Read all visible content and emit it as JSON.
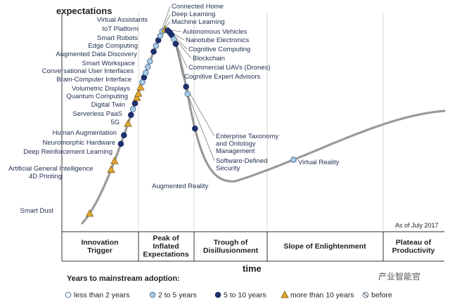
{
  "chart_data": {
    "type": "scatter",
    "ylabel": "expectations",
    "xlabel": "time",
    "as_of": "As of July 2017",
    "phases": [
      "Innovation\nTrigger",
      "Peak of\nInflated\nExpectations",
      "Trough of\nDisillusionment",
      "Slope of Enlightenment",
      "Plateau of\nProductivity"
    ],
    "legend": {
      "title": "Years to mainstream adoption:",
      "items": [
        {
          "key": "lt2",
          "label": "less than 2 years"
        },
        {
          "key": "2to5",
          "label": "2 to 5 years"
        },
        {
          "key": "5to10",
          "label": "5 to 10 years"
        },
        {
          "key": "gt10",
          "label": "more than 10 years"
        },
        {
          "key": "obsolete",
          "label": "before"
        }
      ]
    },
    "points": [
      {
        "label": "Smart Dust",
        "category": "gt10",
        "t": 0.02
      },
      {
        "label": "4D Printing",
        "category": "gt10",
        "t": 0.1
      },
      {
        "label": "Artificial General Intelligence",
        "category": "gt10",
        "t": 0.115
      },
      {
        "label": "Deep Reinforcement Learning",
        "category": "5to10",
        "t": 0.145
      },
      {
        "label": "Neuromorphic Hardware",
        "category": "5to10",
        "t": 0.16
      },
      {
        "label": "Human Augmentation",
        "category": "gt10",
        "t": 0.18
      },
      {
        "label": "5G",
        "category": "5to10",
        "t": 0.195
      },
      {
        "label": "Serverless PaaS",
        "category": "2to5",
        "t": 0.205
      },
      {
        "label": "Digital Twin",
        "category": "5to10",
        "t": 0.215
      },
      {
        "label": "Quantum Computing",
        "category": "gt10",
        "t": 0.225
      },
      {
        "label": "Volumetric Displays",
        "category": "gt10",
        "t": 0.232
      },
      {
        "label": "Brain-Computer Interface",
        "category": "gt10",
        "t": 0.243
      },
      {
        "label": "Conversational User Interfaces",
        "category": "2to5",
        "t": 0.252
      },
      {
        "label": "Smart Workspace",
        "category": "5to10",
        "t": 0.26
      },
      {
        "label": "Augmented Data Discovery",
        "category": "2to5",
        "t": 0.268
      },
      {
        "label": "Edge Computing",
        "category": "2to5",
        "t": 0.278
      },
      {
        "label": "Smart Robots",
        "category": "2to5",
        "t": 0.288
      },
      {
        "label": "IoT Platform",
        "category": "5to10",
        "t": 0.305
      },
      {
        "label": "Virtual Assistants",
        "category": "2to5",
        "t": 0.315
      },
      {
        "label": "Connected Home",
        "category": "5to10",
        "t": 0.325
      },
      {
        "label": "Deep Learning",
        "category": "2to5",
        "t": 0.333
      },
      {
        "label": "Machine Learning",
        "category": "2to5",
        "t": 0.341
      },
      {
        "label": "Autonomous Vehicles",
        "category": "gt10",
        "t": 0.348
      },
      {
        "label": "Nanotube Electronics",
        "category": "5to10",
        "t": 0.352
      },
      {
        "label": "Cognitive Computing",
        "category": "5to10",
        "t": 0.357
      },
      {
        "label": "Blockchain",
        "category": "5to10",
        "t": 0.362
      },
      {
        "label": "Commercial UAVs (Drones)",
        "category": "2to5",
        "t": 0.37
      },
      {
        "label": "Cognitive Expert Advisors",
        "category": "5to10",
        "t": 0.378
      },
      {
        "label": "Enterprise Taxonomy\nand Ontology\nManagement",
        "category": "5to10",
        "t": 0.45
      },
      {
        "label": "Software-Defined\nSecurity",
        "category": "2to5",
        "t": 0.462
      },
      {
        "label": "Augmented Reality",
        "category": "5to10",
        "t": 0.52
      },
      {
        "label": "Virtual Reality",
        "category": "2to5",
        "t": 0.74
      }
    ]
  },
  "watermark": "产业智能官"
}
